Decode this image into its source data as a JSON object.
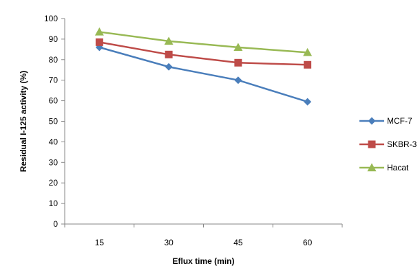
{
  "chart_data": {
    "type": "line",
    "title": "",
    "xlabel": "Eflux time (min)",
    "ylabel": "Residual I-125 activity (%)",
    "x": [
      15,
      30,
      45,
      60
    ],
    "x_tick_labels": [
      "15",
      "30",
      "45",
      "60"
    ],
    "ylim": [
      0,
      100
    ],
    "y_ticks": [
      0,
      10,
      20,
      30,
      40,
      50,
      60,
      70,
      80,
      90,
      100
    ],
    "grid": false,
    "legend_position": "right",
    "series": [
      {
        "name": "MCF-7",
        "values": [
          86,
          76.5,
          70,
          59.5
        ],
        "color": "#4a7ebb",
        "marker": "diamond"
      },
      {
        "name": "SKBR-3",
        "values": [
          88.5,
          82.5,
          78.5,
          77.5
        ],
        "color": "#be4b48",
        "marker": "square"
      },
      {
        "name": "Hacat",
        "values": [
          93.5,
          89,
          86,
          83.5
        ],
        "color": "#98b954",
        "marker": "triangle"
      }
    ]
  }
}
